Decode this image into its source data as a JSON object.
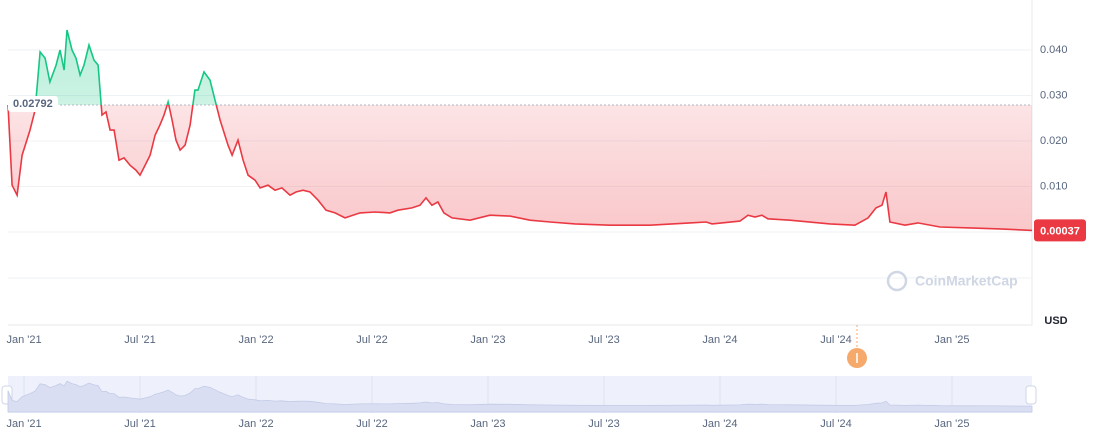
{
  "chart_data": {
    "type": "line",
    "x": [
      -0.83,
      -0.62,
      -0.36,
      -0.1,
      0.31,
      0.57,
      0.83,
      1.09,
      1.34,
      1.66,
      1.86,
      2.07,
      2.22,
      2.48,
      2.69,
      2.9,
      3.1,
      3.36,
      3.62,
      3.83,
      4.03,
      4.24,
      4.45,
      4.66,
      4.91,
      5.17,
      5.48,
      5.79,
      6.0,
      6.26,
      6.52,
      6.78,
      7.03,
      7.24,
      7.45,
      7.66,
      7.86,
      8.07,
      8.33,
      8.59,
      8.84,
      9.0,
      9.31,
      9.62,
      9.88,
      10.14,
      10.55,
      10.76,
      11.07,
      11.33,
      11.59,
      11.95,
      12.21,
      12.62,
      12.98,
      13.34,
      13.76,
      14.07,
      14.43,
      14.79,
      15.21,
      15.62,
      16.09,
      16.6,
      17.38,
      18.16,
      18.93,
      19.34,
      20.07,
      20.48,
      20.79,
      21.1,
      21.41,
      21.72,
      22.14,
      23.07,
      24.1,
      25.14,
      26.17,
      27.21,
      28.5,
      30.31,
      32.38,
      34.45,
      35.28,
      35.59,
      37.03,
      37.45,
      37.81,
      38.17,
      38.48,
      39.62,
      41.69,
      42.98,
      43.66,
      44.07,
      44.38,
      44.59,
      44.79,
      45.57,
      46.24,
      47.38,
      48.93,
      50.48,
      52.14
    ],
    "values": [
      0.02792,
      0.0103,
      0.0081,
      0.0169,
      0.0224,
      0.0268,
      0.0396,
      0.0382,
      0.033,
      0.0367,
      0.04,
      0.0356,
      0.0444,
      0.04,
      0.0382,
      0.0345,
      0.0367,
      0.0411,
      0.0378,
      0.0367,
      0.0257,
      0.0264,
      0.0224,
      0.0224,
      0.0158,
      0.0163,
      0.0147,
      0.0136,
      0.0125,
      0.0147,
      0.0169,
      0.0213,
      0.0235,
      0.0257,
      0.0286,
      0.0246,
      0.0202,
      0.018,
      0.0191,
      0.0235,
      0.0312,
      0.0312,
      0.0352,
      0.0334,
      0.029,
      0.0246,
      0.0191,
      0.0169,
      0.0202,
      0.0158,
      0.0125,
      0.0114,
      0.0097,
      0.0103,
      0.0092,
      0.0097,
      0.0081,
      0.0088,
      0.0092,
      0.0088,
      0.007,
      0.0048,
      0.0042,
      0.0031,
      0.0042,
      0.0044,
      0.0042,
      0.0048,
      0.0053,
      0.0059,
      0.0075,
      0.0059,
      0.0066,
      0.0042,
      0.0031,
      0.0026,
      0.0037,
      0.0035,
      0.0026,
      0.0022,
      0.0018,
      0.0015,
      0.0015,
      0.002,
      0.0022,
      0.0018,
      0.0024,
      0.0037,
      0.0033,
      0.0037,
      0.0029,
      0.0026,
      0.0018,
      0.0015,
      0.0031,
      0.0053,
      0.0059,
      0.0088,
      0.0022,
      0.0015,
      0.002,
      0.0011,
      0.0009,
      0.0007,
      0.00037
    ],
    "baseline": 0.02792,
    "color_up": "#16c784",
    "color_down": "#ea3943",
    "xlim": [
      -0.83,
      52.14
    ],
    "xticks": [
      {
        "value": 0,
        "label": "Jan '21"
      },
      {
        "value": 6,
        "label": "Jul '21"
      },
      {
        "value": 12,
        "label": "Jan '22"
      },
      {
        "value": 18,
        "label": "Jul '22"
      },
      {
        "value": 24,
        "label": "Jan '23"
      },
      {
        "value": 30,
        "label": "Jul '23"
      },
      {
        "value": 36,
        "label": "Jan '24"
      },
      {
        "value": 42,
        "label": "Jul '24"
      },
      {
        "value": 48,
        "label": "Jan '25"
      }
    ],
    "ylim": [
      -0.0101,
      0.0499
    ],
    "yticks": [
      {
        "value": 0.01,
        "label": "0.010"
      },
      {
        "value": 0.02,
        "label": "0.020"
      },
      {
        "value": 0.03,
        "label": "0.030"
      },
      {
        "value": 0.04,
        "label": "0.040"
      }
    ],
    "y_unit": "USD",
    "grid": true
  },
  "watermark": "CoinMarketCap"
}
